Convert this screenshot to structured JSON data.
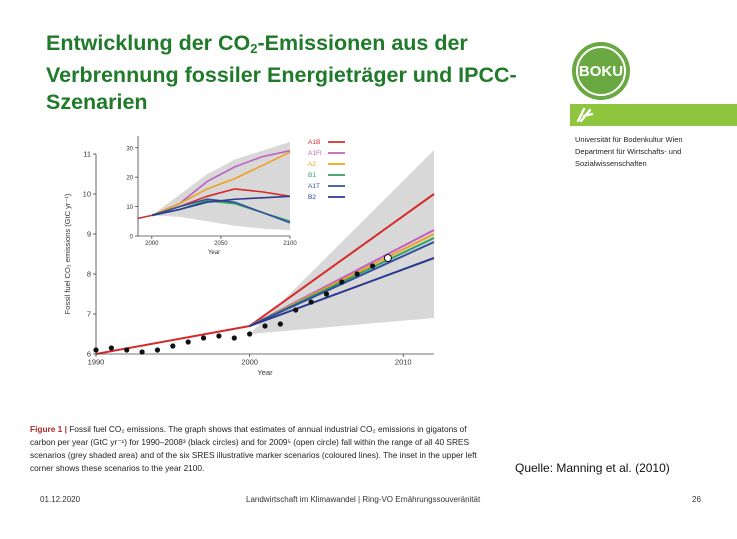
{
  "slide": {
    "title_part1": "Entwicklung der CO",
    "title_sub": "2",
    "title_part2": "-Emissionen aus der Verbrennung fossiler Energieträger und IPCC-Szenarien",
    "logo_text": "BOKU",
    "institution_lines": [
      "Universität für Bodenkultur Wien",
      "Department für Wirtschafts- und",
      "Sozialwissenschaften"
    ],
    "source": "Quelle: Manning et al. (2010)",
    "footer_date": "01.12.2020",
    "footer_center": "Landwirtschaft im Klimawandel | Ring-VO Ernährungssouveränität",
    "footer_page": "26"
  },
  "caption": {
    "label": "Figure 1 |",
    "text": "Fossil fuel CO₂ emissions. The graph shows that estimates of annual industrial CO₂ emissions in gigatons of carbon per year (GtC yr⁻¹) for 1990–2008³ (black circles) and for 2009⁵ (open circle) fall within the range of all 40 SRES scenarios (grey shaded area) and of the six SRES illustrative marker scenarios (coloured lines). The inset in the upper left corner shows these scenarios to the year 2100."
  },
  "colors": {
    "A1B": "#d62b2b",
    "A1FI": "#c060c0",
    "A2": "#f0a020",
    "B1": "#30a060",
    "A1T": "#3050a0",
    "B2": "#2a3a90",
    "green_title": "#1f7a2a",
    "band": "#8ec63f",
    "shade": "#d8d8d8"
  },
  "chart_data": [
    {
      "type": "scatter",
      "title": "",
      "xlabel": "Year",
      "ylabel": "Fossil fuel CO₂ emissions (GtC yr⁻¹)",
      "xlim": [
        1990,
        2012
      ],
      "ylim": [
        6,
        11
      ],
      "xticks": [
        1990,
        2000,
        2010
      ],
      "yticks": [
        6,
        7,
        8,
        9,
        10,
        11
      ],
      "observed": {
        "x": [
          1990,
          1991,
          1992,
          1993,
          1994,
          1995,
          1996,
          1997,
          1998,
          1999,
          2000,
          2001,
          2002,
          2003,
          2004,
          2005,
          2006,
          2007,
          2008
        ],
        "y": [
          6.1,
          6.15,
          6.1,
          6.05,
          6.1,
          6.2,
          6.3,
          6.4,
          6.45,
          6.4,
          6.5,
          6.7,
          6.75,
          7.1,
          7.3,
          7.5,
          7.8,
          8.0,
          8.2
        ]
      },
      "observed_open": {
        "x": [
          2009
        ],
        "y": [
          8.4
        ]
      },
      "scenario_range": {
        "x": [
          2000,
          2012
        ],
        "low": [
          6.5,
          6.9
        ],
        "high": [
          6.5,
          11.1
        ]
      },
      "series": [
        {
          "name": "A1B",
          "x": [
            1990,
            2000,
            2012
          ],
          "y": [
            6.0,
            6.7,
            10.0
          ]
        },
        {
          "name": "A1FI",
          "x": [
            2000,
            2012
          ],
          "y": [
            6.7,
            9.1
          ]
        },
        {
          "name": "A2",
          "x": [
            2000,
            2012
          ],
          "y": [
            6.7,
            9.0
          ]
        },
        {
          "name": "B1",
          "x": [
            2000,
            2012
          ],
          "y": [
            6.7,
            8.9
          ]
        },
        {
          "name": "A1T",
          "x": [
            2000,
            2012
          ],
          "y": [
            6.7,
            8.8
          ]
        },
        {
          "name": "B2",
          "x": [
            2000,
            2012
          ],
          "y": [
            6.7,
            8.4
          ]
        }
      ],
      "grid": false
    },
    {
      "type": "line",
      "title": "",
      "xlabel": "Year",
      "ylabel": "",
      "xlim": [
        1990,
        2100
      ],
      "ylim": [
        0,
        34
      ],
      "xticks": [
        2000,
        2050,
        2100
      ],
      "yticks": [
        0,
        10,
        20,
        30
      ],
      "legend_position": "top-right",
      "scenario_range": {
        "x": [
          2000,
          2020,
          2040,
          2060,
          2080,
          2100
        ],
        "low": [
          7,
          6.5,
          5,
          3.5,
          2.5,
          2
        ],
        "high": [
          7,
          14,
          21,
          26,
          29,
          32
        ]
      },
      "series": [
        {
          "name": "A1B",
          "x": [
            1990,
            2000,
            2020,
            2040,
            2060,
            2080,
            2100
          ],
          "y": [
            6,
            7,
            10,
            13.5,
            16,
            15,
            13.5
          ]
        },
        {
          "name": "A1FI",
          "x": [
            2000,
            2020,
            2040,
            2060,
            2080,
            2100
          ],
          "y": [
            7,
            11,
            18.5,
            23.5,
            27,
            29
          ]
        },
        {
          "name": "A2",
          "x": [
            2000,
            2020,
            2040,
            2060,
            2080,
            2100
          ],
          "y": [
            7,
            11,
            16,
            19.5,
            24,
            28.5
          ]
        },
        {
          "name": "B1",
          "x": [
            2000,
            2020,
            2040,
            2060,
            2080,
            2100
          ],
          "y": [
            7,
            9,
            12,
            11,
            8,
            5
          ]
        },
        {
          "name": "A1T",
          "x": [
            2000,
            2020,
            2040,
            2060,
            2080,
            2100
          ],
          "y": [
            7,
            10,
            12.5,
            11.5,
            8,
            4.5
          ]
        },
        {
          "name": "B2",
          "x": [
            2000,
            2020,
            2040,
            2060,
            2080,
            2100
          ],
          "y": [
            7,
            9,
            11.5,
            12.5,
            13,
            13.5
          ]
        }
      ]
    }
  ]
}
